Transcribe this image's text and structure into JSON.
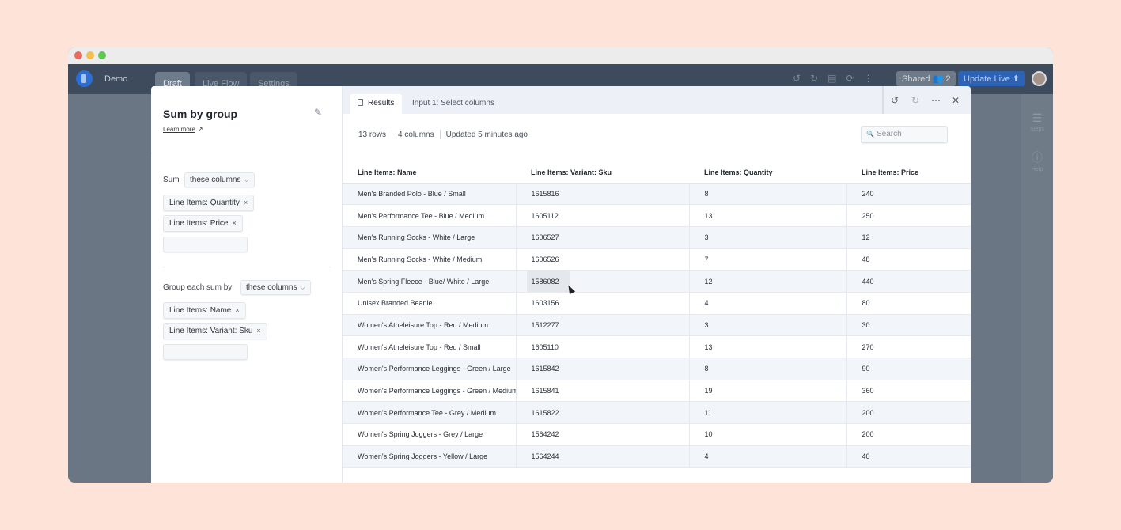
{
  "app": {
    "title": "Demo",
    "nav_tabs": [
      "Draft",
      "Live Flow",
      "Settings"
    ],
    "shared_label": "Shared",
    "shared_count": "2",
    "update_label": "Update Live",
    "rail": {
      "steps_label": "Steps",
      "help_label": "Help"
    }
  },
  "config": {
    "title": "Sum by group",
    "learn_more": "Learn more",
    "sum_label": "Sum",
    "sum_select": "these columns",
    "sum_columns": [
      "Line Items: Quantity",
      "Line Items: Price"
    ],
    "group_label": "Group each sum by",
    "group_select": "these columns",
    "group_columns": [
      "Line Items: Name",
      "Line Items: Variant: Sku"
    ]
  },
  "results": {
    "tabs": [
      "Results",
      "Input 1: Select columns"
    ],
    "rows_count": "13 rows",
    "columns_count": "4 columns",
    "updated": "Updated 5 minutes ago",
    "search_placeholder": "Search",
    "headers": [
      "Line Items: Name",
      "Line Items: Variant: Sku",
      "Line Items: Quantity",
      "Line Items: Price"
    ],
    "rows": [
      [
        "Men's Branded Polo - Blue / Small",
        "1615816",
        "8",
        "240"
      ],
      [
        "Men's Performance Tee - Blue / Medium",
        "1605112",
        "13",
        "250"
      ],
      [
        "Men's Running Socks - White / Large",
        "1606527",
        "3",
        "12"
      ],
      [
        "Men's Running Socks - White / Medium",
        "1606526",
        "7",
        "48"
      ],
      [
        "Men's Spring Fleece - Blue/ White / Large",
        "1586082",
        "12",
        "440"
      ],
      [
        "Unisex Branded Beanie",
        "1603156",
        "4",
        "80"
      ],
      [
        "Women's Atheleisure Top - Red / Medium",
        "1512277",
        "3",
        "30"
      ],
      [
        "Women's Atheleisure Top - Red / Small",
        "1605110",
        "13",
        "270"
      ],
      [
        "Women's Performance Leggings - Green / Large",
        "1615842",
        "8",
        "90"
      ],
      [
        "Women's Performance Leggings - Green / Medium",
        "1615841",
        "19",
        "360"
      ],
      [
        "Women's Performance Tee - Grey / Medium",
        "1615822",
        "11",
        "200"
      ],
      [
        "Women's Spring Joggers - Grey / Large",
        "1564242",
        "10",
        "200"
      ],
      [
        "Women's Spring Joggers - Yellow / Large",
        "1564244",
        "4",
        "40"
      ]
    ]
  }
}
